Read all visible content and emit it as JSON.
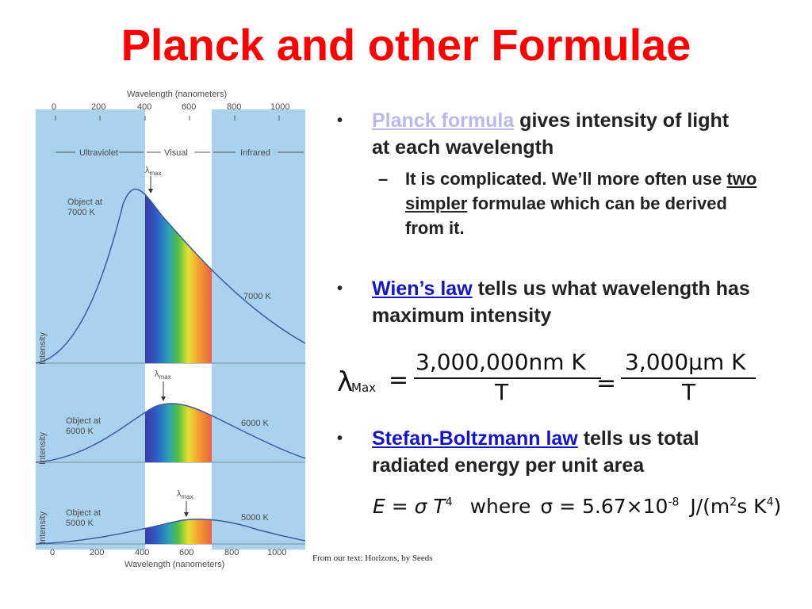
{
  "title": "Planck and other Formulae",
  "figure": {
    "top_axis_label": "Wavelength (nanometers)",
    "bottom_axis_label": "Wavelength (nanometers)",
    "ticks": [
      "0",
      "200",
      "400",
      "600",
      "800",
      "1000"
    ],
    "bands": [
      "Ultraviolet",
      "Visual",
      "Infrared"
    ],
    "y_label": "Intensity",
    "lambda_label": "λ",
    "max_label": "max",
    "panels": [
      {
        "object_line1": "Object at",
        "object_line2": "7000 K",
        "curve_label": "7000 K"
      },
      {
        "object_line1": "Object at",
        "object_line2": "6000 K",
        "curve_label": "6000 K"
      },
      {
        "object_line1": "Object at",
        "object_line2": "5000 K",
        "curve_label": "5000 K"
      }
    ],
    "colors": {
      "uv_ir_band": "#a9d2ee",
      "visual_band": "#ffffff",
      "curve": "#3d5a9a"
    }
  },
  "bullets": {
    "planck_link": "Planck formula",
    "planck_rest": " gives intensity of light at each wavelength",
    "sub_prefix": "It is complicated.  We’ll more often use ",
    "sub_underlined": "two simpler",
    "sub_suffix": " formulae which can be derived from it.",
    "wien_link": "Wien’s law",
    "wien_rest": " tells us what wavelength has maximum intensity",
    "stefan_link": "Stefan-Boltzmann law",
    "stefan_rest": " tells us total radiated energy per unit area"
  },
  "wien_equation": {
    "lambda": "λ",
    "subscript": "Max",
    "equals": "=",
    "numerator1": "3,000,000nm K",
    "denominator1": "T",
    "numerator2": "3,000μm K",
    "denominator2": "T"
  },
  "stefan_equation": {
    "lhs": "E = σ T",
    "power": "4",
    "where": "where",
    "sigma_value": "σ = 5.67×10",
    "exponent": "-8",
    "units": "J/(m",
    "units_power": "2",
    "units_mid": "s K",
    "units_power2": "4",
    "units_close": ")"
  },
  "credit": "From our text:  Horizons, by Seeds"
}
